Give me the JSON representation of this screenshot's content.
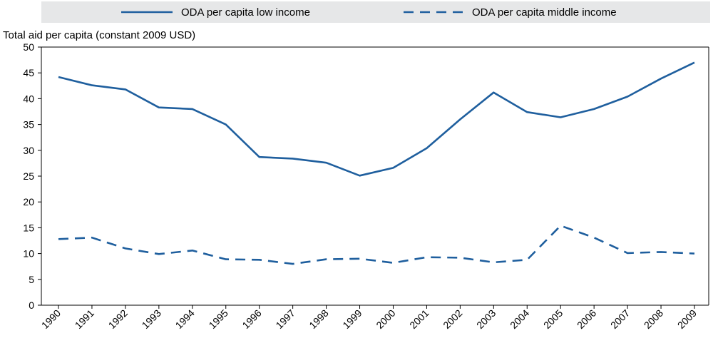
{
  "chart_data": {
    "type": "line",
    "ylabel": "Total aid per capita (constant 2009 USD)",
    "xlabel": "",
    "categories": [
      "1990",
      "1991",
      "1992",
      "1993",
      "1994",
      "1995",
      "1996",
      "1997",
      "1998",
      "1999",
      "2000",
      "2001",
      "2002",
      "2003",
      "2004",
      "2005",
      "2006",
      "2007",
      "2008",
      "2009"
    ],
    "ylim": [
      0,
      50
    ],
    "yticks": [
      0,
      5,
      10,
      15,
      20,
      25,
      30,
      35,
      40,
      45,
      50
    ],
    "legend_position": "top",
    "grid": false,
    "series": [
      {
        "name": "ODA per capita low income",
        "style": "solid",
        "color": "#1f5f9e",
        "values": [
          44.2,
          42.6,
          41.8,
          38.3,
          38.0,
          35.0,
          28.7,
          28.4,
          27.6,
          25.1,
          26.6,
          30.4,
          36.0,
          41.2,
          37.4,
          36.4,
          38.0,
          40.4,
          43.9,
          47.0
        ]
      },
      {
        "name": "ODA per capita middle income",
        "style": "dashed",
        "color": "#1f5f9e",
        "values": [
          12.8,
          13.1,
          11.0,
          9.9,
          10.6,
          8.9,
          8.8,
          8.0,
          8.9,
          9.0,
          8.2,
          9.3,
          9.2,
          8.3,
          8.8,
          15.4,
          13.1,
          10.1,
          10.3,
          10.0
        ]
      }
    ]
  },
  "colors": {
    "line": "#1f5f9e",
    "legend_bg": "#e6e7e8",
    "axis": "#000000"
  }
}
